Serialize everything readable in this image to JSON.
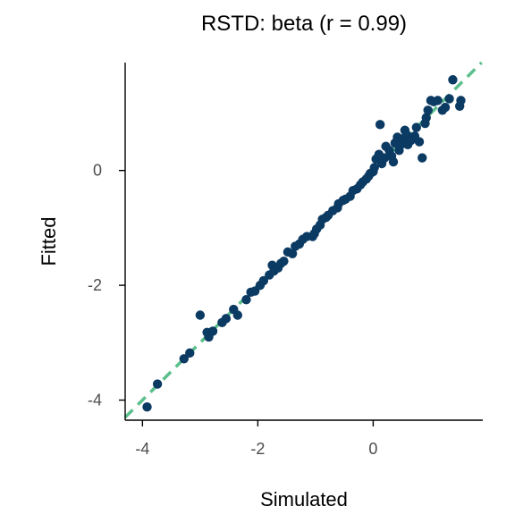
{
  "chart_data": {
    "type": "scatter",
    "title": "RSTD: beta (r = 0.99)",
    "xlabel": "Simulated",
    "ylabel": "Fitted",
    "xlim": [
      -4.3,
      1.9
    ],
    "ylim": [
      -4.35,
      1.88
    ],
    "xticks": [
      -4,
      -2,
      0
    ],
    "yticks": [
      -4,
      -2,
      0
    ],
    "grid": false,
    "legend": "none",
    "colors": {
      "points": "#0b3a63",
      "reference_line": "#5cbf8c",
      "axis": "#000000"
    },
    "reference_line": {
      "slope": 1,
      "intercept": 0,
      "style": "dashed"
    },
    "points": [
      [
        -3.92,
        -4.12
      ],
      [
        -3.74,
        -3.72
      ],
      [
        -3.28,
        -3.28
      ],
      [
        -3.18,
        -3.18
      ],
      [
        -3.0,
        -2.52
      ],
      [
        -2.88,
        -2.82
      ],
      [
        -2.85,
        -2.9
      ],
      [
        -2.78,
        -2.8
      ],
      [
        -2.62,
        -2.65
      ],
      [
        -2.55,
        -2.58
      ],
      [
        -2.42,
        -2.42
      ],
      [
        -2.35,
        -2.52
      ],
      [
        -2.2,
        -2.25
      ],
      [
        -2.12,
        -2.12
      ],
      [
        -2.05,
        -2.1
      ],
      [
        -1.96,
        -2.0
      ],
      [
        -1.9,
        -1.92
      ],
      [
        -1.8,
        -1.82
      ],
      [
        -1.75,
        -1.65
      ],
      [
        -1.72,
        -1.75
      ],
      [
        -1.65,
        -1.7
      ],
      [
        -1.6,
        -1.62
      ],
      [
        -1.55,
        -1.58
      ],
      [
        -1.48,
        -1.42
      ],
      [
        -1.4,
        -1.45
      ],
      [
        -1.35,
        -1.32
      ],
      [
        -1.28,
        -1.28
      ],
      [
        -1.22,
        -1.2
      ],
      [
        -1.15,
        -1.15
      ],
      [
        -1.05,
        -1.15
      ],
      [
        -1.02,
        -1.1
      ],
      [
        -0.98,
        -1.02
      ],
      [
        -0.92,
        -0.95
      ],
      [
        -0.88,
        -0.85
      ],
      [
        -0.82,
        -0.82
      ],
      [
        -0.78,
        -0.78
      ],
      [
        -0.7,
        -0.7
      ],
      [
        -0.62,
        -0.65
      ],
      [
        -0.6,
        -0.58
      ],
      [
        -0.52,
        -0.52
      ],
      [
        -0.48,
        -0.5
      ],
      [
        -0.4,
        -0.45
      ],
      [
        -0.35,
        -0.35
      ],
      [
        -0.28,
        -0.32
      ],
      [
        -0.22,
        -0.25
      ],
      [
        -0.18,
        -0.2
      ],
      [
        -0.12,
        -0.15
      ],
      [
        -0.08,
        -0.1
      ],
      [
        -0.05,
        -0.05
      ],
      [
        0.0,
        -0.02
      ],
      [
        0.02,
        0.05
      ],
      [
        0.05,
        0.2
      ],
      [
        0.1,
        0.28
      ],
      [
        0.15,
        0.12
      ],
      [
        0.2,
        0.22
      ],
      [
        0.12,
        0.8
      ],
      [
        0.22,
        0.42
      ],
      [
        0.28,
        0.35
      ],
      [
        0.32,
        0.25
      ],
      [
        0.35,
        0.15
      ],
      [
        0.38,
        0.48
      ],
      [
        0.42,
        0.58
      ],
      [
        0.45,
        0.35
      ],
      [
        0.48,
        0.45
      ],
      [
        0.5,
        0.55
      ],
      [
        0.55,
        0.7
      ],
      [
        0.58,
        0.62
      ],
      [
        0.6,
        0.45
      ],
      [
        0.65,
        0.52
      ],
      [
        0.72,
        0.6
      ],
      [
        0.75,
        0.75
      ],
      [
        0.8,
        0.5
      ],
      [
        0.85,
        0.22
      ],
      [
        0.9,
        0.82
      ],
      [
        0.92,
        0.92
      ],
      [
        0.95,
        1.05
      ],
      [
        1.0,
        1.22
      ],
      [
        1.05,
        1.2
      ],
      [
        1.12,
        1.22
      ],
      [
        1.2,
        1.05
      ],
      [
        1.25,
        1.1
      ],
      [
        1.32,
        1.25
      ],
      [
        1.38,
        1.58
      ],
      [
        1.5,
        1.12
      ],
      [
        1.52,
        1.22
      ]
    ]
  }
}
